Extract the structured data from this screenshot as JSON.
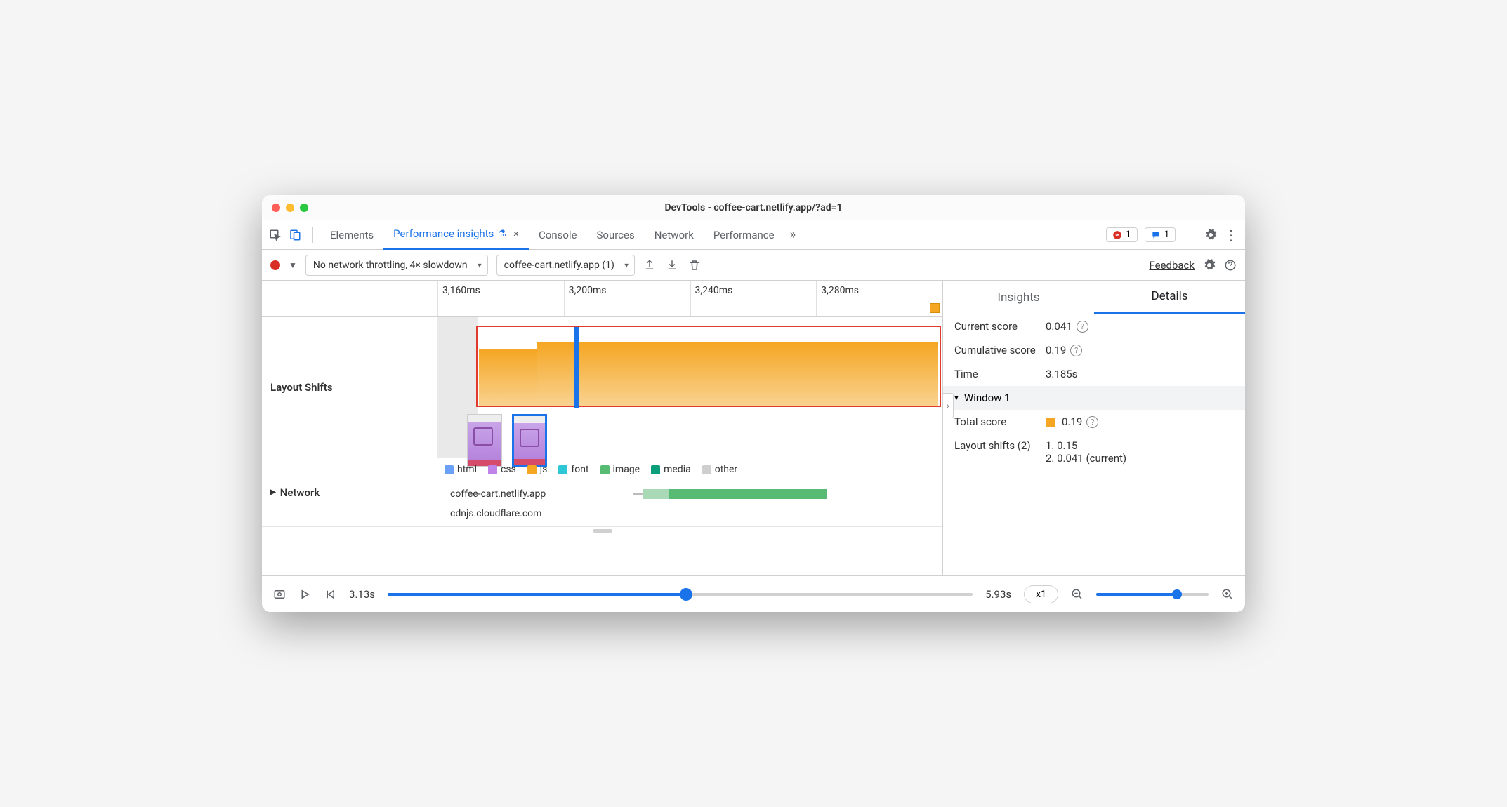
{
  "window": {
    "title": "DevTools - coffee-cart.netlify.app/?ad=1"
  },
  "tabs": {
    "items": [
      "Elements",
      "Performance insights",
      "Console",
      "Sources",
      "Network",
      "Performance"
    ],
    "active_index": 1,
    "experimental": true
  },
  "badges": {
    "errors": "1",
    "messages": "1"
  },
  "toolbar": {
    "throttling": "No network throttling, 4× slowdown",
    "session": "coffee-cart.netlify.app (1)",
    "feedback": "Feedback"
  },
  "timeline": {
    "ticks": [
      "3,160ms",
      "3,200ms",
      "3,240ms",
      "3,280ms"
    ],
    "section_label": "Layout Shifts",
    "colors": {
      "orange": "#f5a623",
      "orange_to": "#f9d28f",
      "highlight_border": "#e23b2e",
      "playhead": "#1a73e8",
      "gray_bg": "#e9e9e9"
    },
    "thumbs": [
      {
        "selected": false
      },
      {
        "selected": true
      }
    ]
  },
  "network": {
    "label": "Network",
    "legend": [
      {
        "label": "html",
        "color": "#6aa0f7"
      },
      {
        "label": "css",
        "color": "#c084e8"
      },
      {
        "label": "js",
        "color": "#f5a623"
      },
      {
        "label": "font",
        "color": "#2ec7d6"
      },
      {
        "label": "image",
        "color": "#57bb74"
      },
      {
        "label": "media",
        "color": "#0a9e7a"
      },
      {
        "label": "other",
        "color": "#cfcfcf"
      }
    ],
    "rows": [
      {
        "label": "coffee-cart.netlify.app",
        "segments": [
          {
            "left_pct": 9,
            "width_pct": 8,
            "color": "#a9d9b6"
          },
          {
            "left_pct": 17,
            "width_pct": 48,
            "color": "#57bb74"
          }
        ]
      },
      {
        "label": "cdnjs.cloudflare.com",
        "segments": []
      }
    ]
  },
  "details": {
    "tabs": [
      "Insights",
      "Details"
    ],
    "active": 1,
    "rows": [
      {
        "k": "Current score",
        "v": "0.041",
        "help": true
      },
      {
        "k": "Cumulative score",
        "v": "0.19",
        "help": true
      },
      {
        "k": "Time",
        "v": "3.185s",
        "help": false
      }
    ],
    "window_label": "Window 1",
    "total_score": {
      "k": "Total score",
      "v": "0.19",
      "swatch": "#f5a623",
      "help": true
    },
    "shifts_label": "Layout shifts (2)",
    "shifts": [
      "1. 0.15",
      "2. 0.041 (current)"
    ]
  },
  "playbar": {
    "start": "3.13s",
    "end": "5.93s",
    "pos_pct": 51,
    "speed": "x1",
    "zoom_pct": 72
  }
}
